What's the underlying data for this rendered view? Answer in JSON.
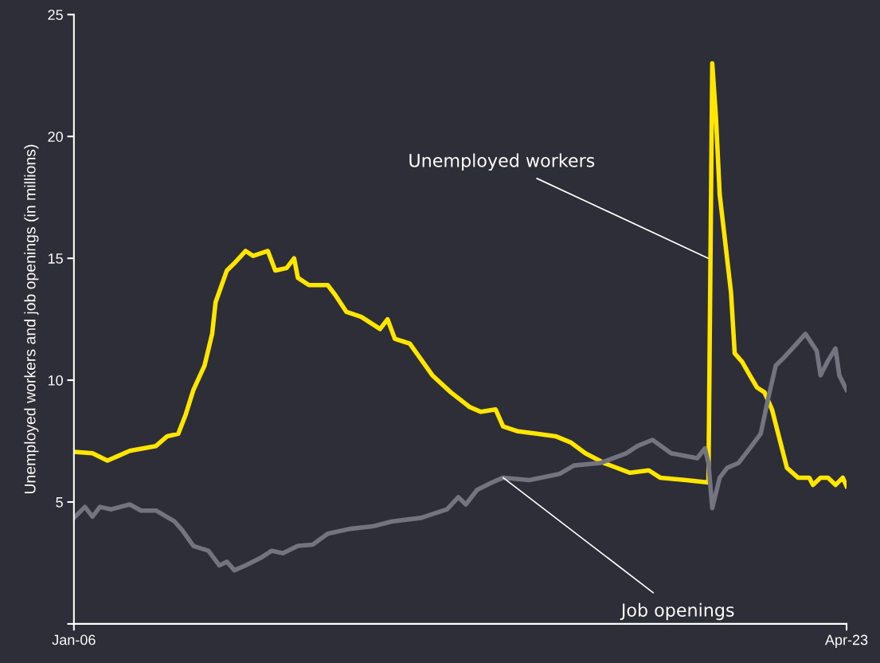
{
  "chart_data": {
    "type": "line",
    "ylabel": "Unemployed workers and job openings (in millions)",
    "xlim": [
      "2006-01",
      "2023-04"
    ],
    "xticks": [
      {
        "value": "2006-01",
        "label": "Jan-06"
      },
      {
        "value": "2023-04",
        "label": "Apr-23"
      }
    ],
    "ylim": [
      0,
      25
    ],
    "yticks": [
      {
        "value": 0,
        "label": null
      },
      5,
      10,
      15,
      20,
      25
    ],
    "grid": false,
    "marker": "none",
    "line_style": "solid",
    "annotations": [
      {
        "text": "Unemployed workers",
        "x": "2020-03",
        "y": 15
      },
      {
        "text": "Job openings",
        "x": "2015-08",
        "y": 6.0
      }
    ],
    "series": [
      {
        "color": "#ffe600",
        "x": [
          "2006-01",
          "2006-06",
          "2006-10",
          "2007-01",
          "2007-04",
          "2007-11",
          "2008-02",
          "2008-05",
          "2008-07",
          "2008-09",
          "2008-12",
          "2009-02",
          "2009-03",
          "2009-06",
          "2009-08",
          "2009-11",
          "2010-01",
          "2010-05",
          "2010-07",
          "2010-10",
          "2010-12",
          "2011-01",
          "2011-04",
          "2011-09",
          "2011-11",
          "2012-02",
          "2012-06",
          "2012-11",
          "2013-01",
          "2013-03",
          "2013-07",
          "2014-01",
          "2014-06",
          "2014-11",
          "2015-02",
          "2015-06",
          "2015-08",
          "2015-12",
          "2016-05",
          "2016-10",
          "2017-02",
          "2017-06",
          "2017-11",
          "2018-06",
          "2018-11",
          "2019-02",
          "2019-09",
          "2020-03",
          "2020-04",
          "2020-05",
          "2020-06",
          "2020-07",
          "2020-09",
          "2020-10",
          "2020-12",
          "2021-02",
          "2021-04",
          "2021-06",
          "2021-08",
          "2021-10",
          "2021-12",
          "2022-03",
          "2022-06",
          "2022-07",
          "2022-09",
          "2022-11",
          "2023-01",
          "2023-03",
          "2023-04"
        ],
        "values": [
          7.06,
          7.0,
          6.7,
          6.9,
          7.1,
          7.3,
          7.7,
          7.8,
          8.6,
          9.6,
          10.6,
          11.9,
          13.2,
          14.5,
          14.8,
          15.3,
          15.1,
          15.3,
          14.5,
          14.6,
          15.0,
          14.2,
          13.9,
          13.9,
          13.5,
          12.8,
          12.6,
          12.1,
          12.5,
          11.7,
          11.5,
          10.2,
          9.5,
          8.9,
          8.7,
          8.8,
          8.1,
          7.9,
          7.8,
          7.7,
          7.45,
          7.0,
          6.6,
          6.2,
          6.3,
          6.0,
          5.9,
          5.8,
          23.0,
          20.8,
          17.6,
          16.3,
          13.6,
          11.1,
          10.75,
          10.2,
          9.7,
          9.5,
          8.8,
          7.6,
          6.4,
          6.0,
          6.0,
          5.7,
          6.0,
          6.0,
          5.7,
          6.0,
          5.65
        ]
      },
      {
        "color": "#747480",
        "x": [
          "2006-01",
          "2006-04",
          "2006-06",
          "2006-08",
          "2006-11",
          "2007-04",
          "2007-07",
          "2007-11",
          "2008-04",
          "2008-06",
          "2008-09",
          "2009-01",
          "2009-04",
          "2009-06",
          "2009-08",
          "2009-11",
          "2010-03",
          "2010-06",
          "2010-09",
          "2011-01",
          "2011-05",
          "2011-09",
          "2012-03",
          "2012-09",
          "2013-02",
          "2013-10",
          "2014-05",
          "2014-08",
          "2014-10",
          "2015-01",
          "2015-05",
          "2015-08",
          "2016-03",
          "2016-11",
          "2017-03",
          "2017-10",
          "2018-05",
          "2018-08",
          "2018-12",
          "2019-05",
          "2019-12",
          "2020-02",
          "2020-03",
          "2020-04",
          "2020-06",
          "2020-08",
          "2020-11",
          "2021-01",
          "2021-05",
          "2021-07",
          "2021-09",
          "2021-11",
          "2022-02",
          "2022-05",
          "2022-08",
          "2022-09",
          "2022-11",
          "2023-01",
          "2023-02",
          "2023-04"
        ],
        "values": [
          4.35,
          4.8,
          4.4,
          4.8,
          4.7,
          4.9,
          4.65,
          4.65,
          4.2,
          3.85,
          3.2,
          3.0,
          2.4,
          2.55,
          2.2,
          2.4,
          2.7,
          3.0,
          2.9,
          3.2,
          3.25,
          3.7,
          3.9,
          4.0,
          4.2,
          4.35,
          4.7,
          5.2,
          4.9,
          5.5,
          5.8,
          6.0,
          5.9,
          6.15,
          6.5,
          6.6,
          7.0,
          7.3,
          7.55,
          7.0,
          6.8,
          7.2,
          6.6,
          4.75,
          6.0,
          6.4,
          6.6,
          7.0,
          7.8,
          9.25,
          10.6,
          10.9,
          11.4,
          11.9,
          11.2,
          10.2,
          10.8,
          11.3,
          10.2,
          9.6
        ]
      }
    ]
  }
}
